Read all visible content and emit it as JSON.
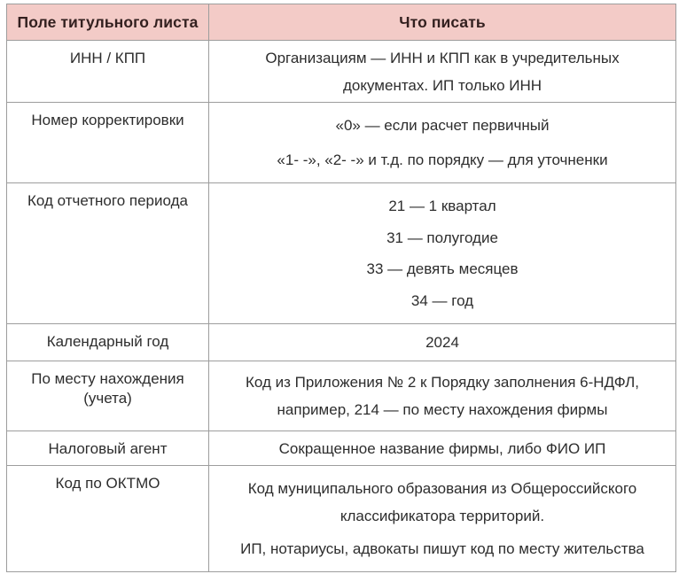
{
  "page": {
    "background": "#ffffff"
  },
  "table": {
    "columns": [
      {
        "label": "Поле титульного листа"
      },
      {
        "label": "Что писать"
      }
    ],
    "rows": [
      {
        "field": "ИНН / КПП",
        "values": [
          [
            "Организациям — ИНН и КПП как в учредительных",
            "документах. ИП только ИНН"
          ]
        ]
      },
      {
        "field": "Номер корректировки",
        "values": [
          [
            "«0» — если расчет первичный"
          ],
          [
            "«1- -», «2- -» и т.д. по порядку — для уточненки"
          ]
        ]
      },
      {
        "field": "Код отчетного периода",
        "values": [
          [
            "21 — 1 квартал"
          ],
          [
            "31 — полугодие"
          ],
          [
            "33 — девять месяцев"
          ],
          [
            "34 — год"
          ]
        ]
      },
      {
        "field": "Календарный год",
        "values": [
          [
            "2024"
          ]
        ]
      },
      {
        "field": "По месту нахождения (учета)",
        "values": [
          [
            "Код из Приложения № 2 к Порядку заполнения 6-НДФЛ,",
            "например, 214 — по месту нахождения фирмы"
          ]
        ]
      },
      {
        "field": "Налоговый агент",
        "values": [
          [
            "Сокращенное название фирмы, либо ФИО ИП"
          ]
        ]
      },
      {
        "field": "Код по ОКТМО",
        "values": [
          [
            "Код муниципального образования из Общероссийского",
            "классификатора территорий."
          ],
          [
            "ИП, нотариусы, адвокаты пишут код по месту жительства"
          ]
        ]
      }
    ],
    "colors": {
      "header_bg": "#f3cbc7",
      "header_text": "#33201f",
      "body_text": "#2d2d2d",
      "border": "#9d9d9d"
    }
  }
}
